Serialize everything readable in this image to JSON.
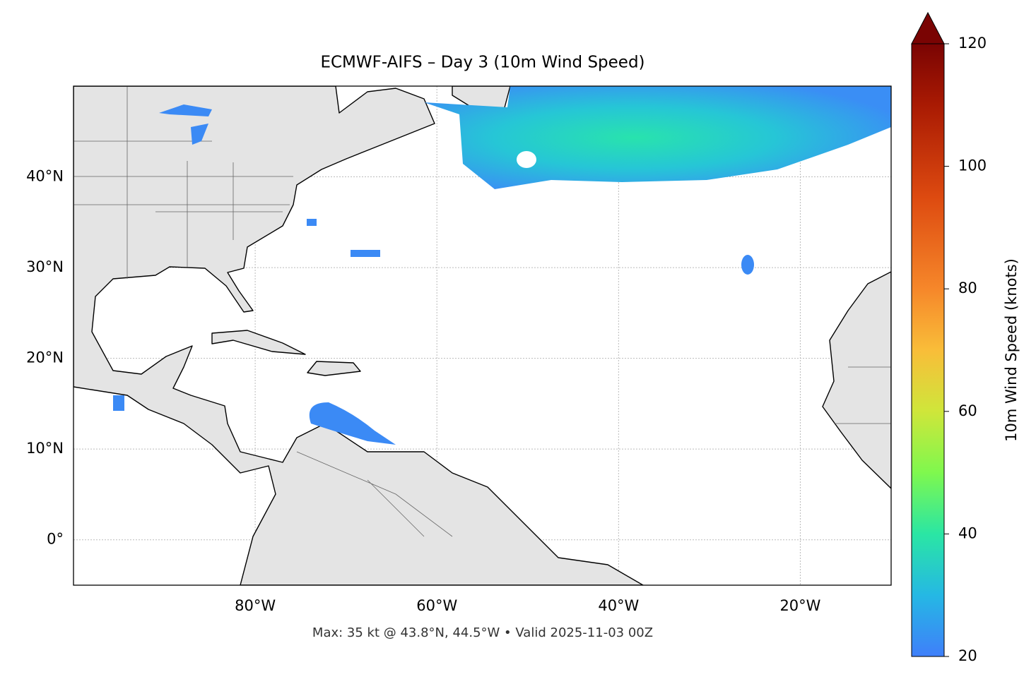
{
  "title": "ECMWF-AIFS – Day 3 (10m Wind Speed)",
  "map": {
    "lonlim": [
      -100,
      -10
    ],
    "latlim": [
      -5,
      50
    ],
    "lon_ticks": [
      {
        "value": -80,
        "label": "80°W"
      },
      {
        "value": -60,
        "label": "60°W"
      },
      {
        "value": -40,
        "label": "40°W"
      },
      {
        "value": -20,
        "label": "20°W"
      }
    ],
    "lat_ticks": [
      {
        "value": 0,
        "label": "0°"
      },
      {
        "value": 10,
        "label": "10°N"
      },
      {
        "value": 20,
        "label": "20°N"
      },
      {
        "value": 30,
        "label": "30°N"
      },
      {
        "value": 40,
        "label": "40°N"
      }
    ],
    "grid": true
  },
  "colorbar": {
    "label": "10m Wind Speed (knots)",
    "lim": [
      20,
      120
    ],
    "ticks": [
      20,
      40,
      60,
      80,
      100,
      120
    ],
    "extend": "max"
  },
  "footer": "Max: 35 kt @ 43.8°N, 44.5°W • Valid 2025-11-03 00Z"
}
